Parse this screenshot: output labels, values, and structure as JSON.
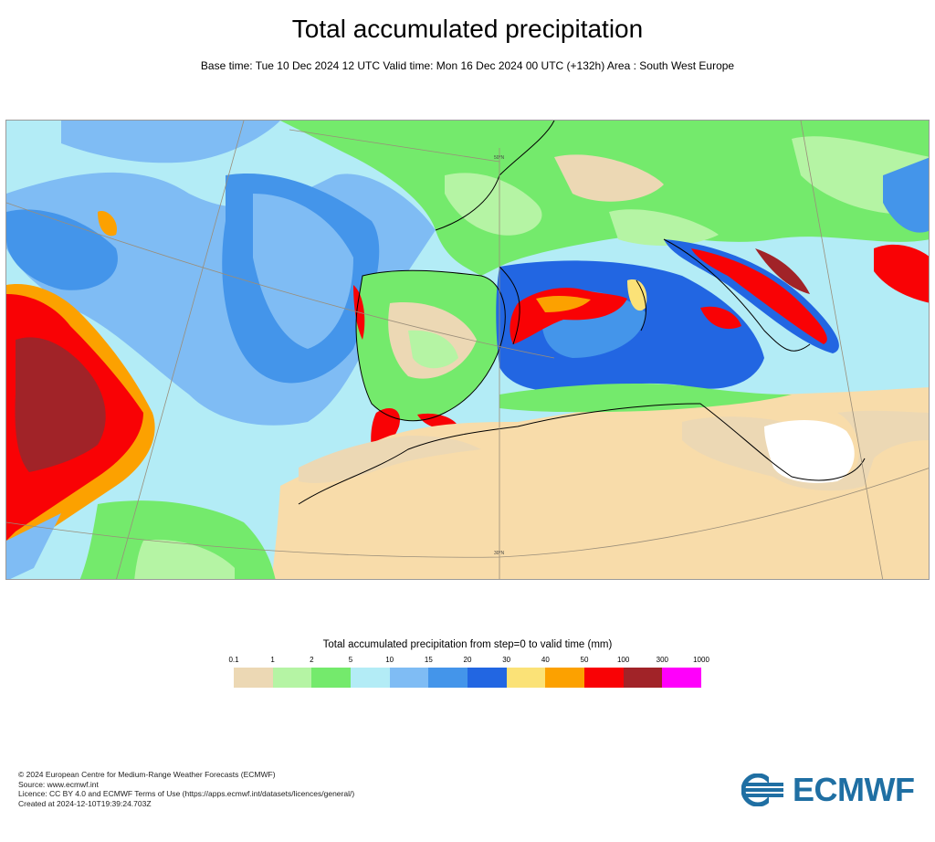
{
  "header": {
    "title": "Total accumulated precipitation",
    "subtitle": "Base time: Tue 10 Dec 2024 12 UTC Valid time: Mon 16 Dec 2024 00 UTC (+132h) Area : South West Europe"
  },
  "map": {
    "region": "South West Europe",
    "gridline_labels": [
      "50°N",
      "30°N"
    ],
    "colors": {
      "land_dry": "#f8dcaa",
      "no_precip": "#ffffff",
      "coastline": "#000000",
      "gridline": "#9a8e7a"
    }
  },
  "legend": {
    "title": "Total accumulated precipitation from step=0 to valid time (mm)",
    "ticks": [
      "0.1",
      "1",
      "2",
      "5",
      "10",
      "15",
      "20",
      "30",
      "40",
      "50",
      "100",
      "300",
      "1000"
    ],
    "colors": [
      "#ecd8b4",
      "#b5f4a4",
      "#74ea6c",
      "#b3ecf6",
      "#7fbcf4",
      "#4495ea",
      "#2266e2",
      "#fbe277",
      "#fca100",
      "#f90205",
      "#a12328",
      "#ff00fb"
    ]
  },
  "footer": {
    "lines": [
      "© 2024 European Centre for Medium-Range Weather Forecasts (ECMWF)",
      "Source: www.ecmwf.int",
      "Licence: CC BY 4.0 and ECMWF Terms of Use (https://apps.ecmwf.int/datasets/licences/general/)",
      "Created at 2024-12-10T19:39:24.703Z"
    ]
  },
  "logo": {
    "text": "ECMWF",
    "color": "#1f6fa3"
  }
}
